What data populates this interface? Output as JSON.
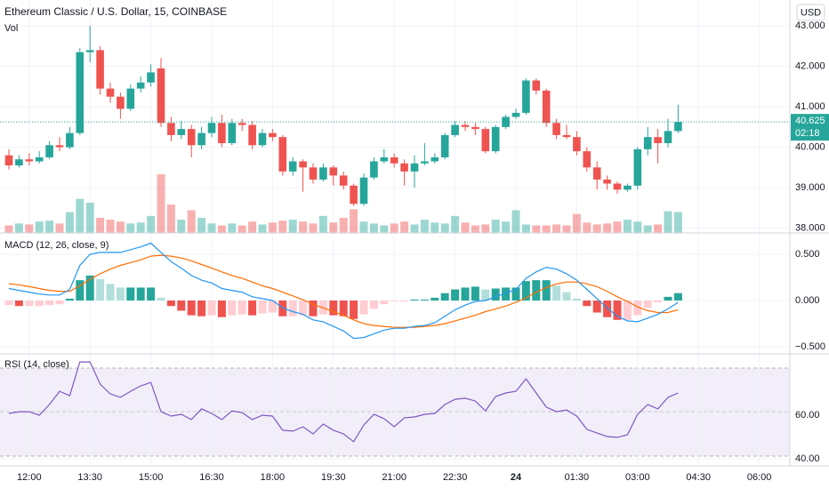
{
  "chart_data": {
    "type": "candlestick",
    "title": "Ethereum Classic / U.S. Dollar, 15, COINBASE",
    "volume_title": "Vol",
    "currency": "USD",
    "up_color": "#26a69a",
    "down_color": "#ef5350",
    "grid": true,
    "open": [
      39.8,
      39.55,
      39.7,
      39.65,
      39.75,
      40.05,
      40.0,
      40.35,
      42.35,
      42.4,
      41.45,
      41.25,
      40.95,
      41.45,
      41.6,
      41.95,
      40.6,
      40.3,
      40.45,
      40.05,
      40.35,
      40.6,
      40.1,
      40.6,
      40.55,
      40.05,
      40.35,
      40.25,
      39.4,
      39.65,
      39.5,
      39.2,
      39.5,
      39.3,
      39.05,
      38.6,
      39.25,
      39.65,
      39.75,
      39.6,
      39.4,
      39.6,
      39.65,
      39.75,
      40.3,
      40.55,
      40.5,
      40.45,
      39.9,
      40.5,
      40.75,
      40.85,
      41.65,
      41.4,
      40.6,
      40.3,
      40.25,
      39.9,
      39.5,
      39.2,
      39.1,
      38.95,
      39.05,
      39.95,
      40.25,
      40.1,
      40.4
    ],
    "high": [
      39.95,
      39.8,
      39.85,
      39.9,
      40.15,
      40.25,
      40.5,
      42.45,
      43.0,
      42.5,
      41.6,
      41.35,
      41.55,
      41.75,
      42.05,
      42.2,
      40.75,
      40.65,
      40.55,
      40.5,
      40.75,
      40.8,
      40.7,
      40.7,
      40.65,
      40.45,
      40.45,
      40.3,
      39.75,
      39.7,
      39.6,
      39.6,
      39.55,
      39.4,
      39.1,
      39.35,
      39.75,
      39.95,
      39.85,
      39.7,
      39.8,
      40.1,
      39.85,
      40.35,
      40.65,
      40.65,
      40.6,
      40.5,
      40.55,
      40.8,
      40.95,
      41.7,
      41.7,
      41.45,
      40.7,
      40.55,
      40.4,
      40.0,
      39.65,
      39.3,
      39.15,
      39.1,
      40.0,
      40.5,
      40.45,
      40.7,
      41.05
    ],
    "low": [
      39.45,
      39.5,
      39.55,
      39.6,
      39.7,
      39.9,
      39.95,
      40.3,
      42.1,
      41.3,
      41.1,
      40.7,
      40.9,
      41.35,
      41.5,
      40.5,
      40.15,
      40.2,
      39.75,
      39.95,
      40.25,
      40.0,
      40.05,
      40.4,
      39.95,
      40.0,
      40.15,
      39.3,
      39.3,
      38.9,
      39.1,
      39.15,
      39.05,
      38.95,
      38.55,
      38.55,
      39.2,
      39.6,
      39.5,
      39.05,
      39.0,
      39.55,
      39.6,
      39.7,
      40.25,
      40.4,
      40.3,
      39.85,
      39.85,
      40.45,
      40.7,
      40.8,
      41.3,
      40.5,
      40.2,
      40.2,
      39.8,
      39.4,
      38.95,
      38.95,
      38.85,
      38.9,
      38.95,
      39.8,
      39.6,
      40.0,
      40.35
    ],
    "close": [
      39.55,
      39.7,
      39.65,
      39.75,
      40.05,
      40.0,
      40.35,
      42.35,
      42.4,
      41.45,
      41.25,
      40.95,
      41.45,
      41.6,
      41.85,
      40.6,
      40.3,
      40.45,
      40.05,
      40.35,
      40.6,
      40.1,
      40.6,
      40.55,
      40.05,
      40.35,
      40.25,
      39.4,
      39.65,
      39.5,
      39.2,
      39.5,
      39.3,
      39.05,
      38.6,
      39.25,
      39.65,
      39.75,
      39.6,
      39.4,
      39.6,
      39.65,
      39.75,
      40.3,
      40.55,
      40.5,
      40.45,
      39.9,
      40.5,
      40.75,
      40.85,
      41.65,
      41.4,
      40.6,
      40.3,
      40.25,
      39.9,
      39.5,
      39.2,
      39.1,
      38.95,
      39.05,
      39.95,
      40.25,
      40.1,
      40.4,
      40.625
    ],
    "volume": [
      8,
      10,
      9,
      12,
      13,
      10,
      22,
      36,
      32,
      16,
      14,
      12,
      10,
      11,
      18,
      62,
      30,
      14,
      24,
      16,
      10,
      8,
      10,
      8,
      12,
      9,
      11,
      13,
      14,
      12,
      10,
      18,
      11,
      16,
      25,
      12,
      10,
      8,
      10,
      12,
      9,
      14,
      11,
      10,
      18,
      11,
      8,
      9,
      14,
      12,
      24,
      9,
      8,
      8,
      9,
      8,
      20,
      11,
      9,
      10,
      12,
      14,
      12,
      8,
      9,
      23,
      22
    ],
    "last_price": 40.625,
    "countdown": "02:18",
    "ylim": [
      37.88,
      43.64
    ],
    "yticks": [
      {
        "value": 43,
        "label": "43.000"
      },
      {
        "value": 42,
        "label": "42.000"
      },
      {
        "value": 41,
        "label": "41.000"
      },
      {
        "value": 40,
        "label": "40.000"
      },
      {
        "value": 39,
        "label": "39.000"
      },
      {
        "value": 38,
        "label": "38.000"
      }
    ],
    "xticks": [
      {
        "value": 2,
        "label": "12:00"
      },
      {
        "value": 8,
        "label": "13:30"
      },
      {
        "value": 14,
        "label": "15:00"
      },
      {
        "value": 20,
        "label": "16:30"
      },
      {
        "value": 26,
        "label": "18:00"
      },
      {
        "value": 32,
        "label": "19:30"
      },
      {
        "value": 38,
        "label": "21:00"
      },
      {
        "value": 44,
        "label": "22:30"
      },
      {
        "value": 50,
        "label": "24",
        "bold": true
      },
      {
        "value": 56,
        "label": "01:30"
      },
      {
        "value": 62,
        "label": "03:00"
      },
      {
        "value": 68,
        "label": "04:30"
      },
      {
        "value": 74,
        "label": "06:00"
      }
    ],
    "macd": {
      "title": "MACD (12, 26, close, 9)",
      "line_color": "#2196f3",
      "signal_color": "#ff6d00",
      "hist_colors": [
        "#26a69a",
        "#b2dfdb",
        "#ffcdd2",
        "#ef5350"
      ],
      "ylim": [
        -0.577,
        0.731
      ],
      "yticks": [
        {
          "value": 0.5,
          "label": "0.500"
        },
        {
          "value": 0,
          "label": "0.000"
        },
        {
          "value": -0.5,
          "label": "−0.500"
        }
      ],
      "histogram": [
        -0.05,
        -0.06,
        -0.06,
        -0.06,
        -0.05,
        -0.04,
        0.02,
        0.22,
        0.27,
        0.23,
        0.18,
        0.14,
        0.14,
        0.14,
        0.14,
        0.03,
        -0.06,
        -0.11,
        -0.16,
        -0.17,
        -0.16,
        -0.18,
        -0.16,
        -0.15,
        -0.16,
        -0.14,
        -0.13,
        -0.17,
        -0.17,
        -0.16,
        -0.17,
        -0.15,
        -0.16,
        -0.17,
        -0.2,
        -0.15,
        -0.09,
        -0.04,
        -0.01,
        -0.01,
        0.01,
        0.01,
        0.03,
        0.08,
        0.12,
        0.14,
        0.15,
        0.12,
        0.13,
        0.14,
        0.14,
        0.21,
        0.22,
        0.22,
        0.16,
        0.09,
        0.02,
        -0.06,
        -0.13,
        -0.18,
        -0.21,
        -0.21,
        -0.16,
        -0.08,
        -0.02,
        0.04,
        0.08
      ],
      "line": [
        0.13,
        0.11,
        0.09,
        0.07,
        0.06,
        0.06,
        0.12,
        0.38,
        0.5,
        0.52,
        0.52,
        0.52,
        0.55,
        0.58,
        0.62,
        0.52,
        0.42,
        0.35,
        0.27,
        0.22,
        0.19,
        0.13,
        0.11,
        0.09,
        0.04,
        0.02,
        0.0,
        -0.08,
        -0.12,
        -0.15,
        -0.21,
        -0.23,
        -0.28,
        -0.33,
        -0.41,
        -0.4,
        -0.36,
        -0.32,
        -0.3,
        -0.3,
        -0.28,
        -0.27,
        -0.24,
        -0.17,
        -0.1,
        -0.05,
        -0.01,
        0.0,
        0.04,
        0.08,
        0.12,
        0.24,
        0.31,
        0.36,
        0.34,
        0.29,
        0.22,
        0.12,
        0.02,
        -0.08,
        -0.17,
        -0.22,
        -0.23,
        -0.19,
        -0.15,
        -0.09,
        -0.02
      ],
      "signal": [
        0.18,
        0.17,
        0.15,
        0.13,
        0.11,
        0.1,
        0.1,
        0.16,
        0.23,
        0.29,
        0.34,
        0.38,
        0.41,
        0.44,
        0.48,
        0.49,
        0.48,
        0.46,
        0.43,
        0.39,
        0.35,
        0.31,
        0.27,
        0.24,
        0.2,
        0.16,
        0.13,
        0.09,
        0.05,
        0.01,
        -0.04,
        -0.08,
        -0.12,
        -0.16,
        -0.21,
        -0.25,
        -0.27,
        -0.28,
        -0.29,
        -0.29,
        -0.29,
        -0.28,
        -0.27,
        -0.25,
        -0.22,
        -0.19,
        -0.16,
        -0.12,
        -0.09,
        -0.06,
        -0.02,
        0.03,
        0.09,
        0.14,
        0.18,
        0.2,
        0.2,
        0.18,
        0.15,
        0.1,
        0.04,
        -0.01,
        -0.07,
        -0.11,
        -0.13,
        -0.13,
        -0.1
      ]
    },
    "rsi": {
      "title": "RSI (14, close)",
      "color": "#7e57c2",
      "ylim": [
        36.7,
        88.2
      ],
      "yticks": [
        {
          "value": 60,
          "label": "60.00"
        },
        {
          "value": 40,
          "label": "40.00"
        }
      ],
      "values": [
        60.8,
        61.6,
        61.6,
        60.0,
        64.9,
        71.0,
        69.0,
        84.5,
        84.5,
        74.3,
        69.8,
        68.2,
        71.0,
        73.5,
        75.1,
        61.6,
        59.6,
        60.4,
        58.0,
        62.9,
        60.8,
        58.0,
        62.0,
        61.2,
        58.0,
        60.0,
        59.6,
        53.1,
        52.7,
        54.7,
        51.4,
        55.9,
        53.1,
        51.4,
        47.8,
        55.5,
        60.4,
        58.4,
        54.7,
        58.8,
        59.2,
        60.4,
        60.8,
        64.9,
        67.3,
        67.8,
        66.5,
        62.0,
        68.6,
        70.2,
        71.0,
        76.7,
        70.2,
        63.7,
        61.6,
        62.4,
        59.6,
        53.5,
        51.8,
        50.2,
        49.8,
        51.0,
        60.4,
        64.9,
        62.9,
        68.2,
        70.2
      ]
    }
  }
}
